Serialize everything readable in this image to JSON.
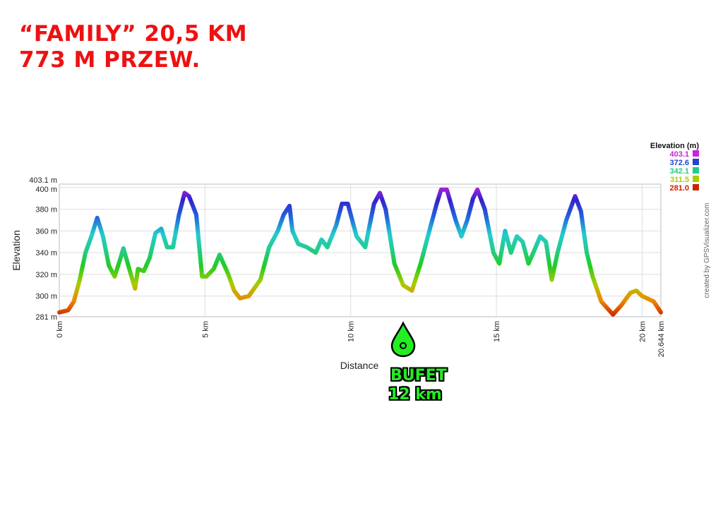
{
  "header": {
    "title_line1": "“FAMILY” 20,5 KM",
    "title_line2": "773 M PRZEW."
  },
  "annotation": {
    "label_line1": "BUFET",
    "label_line2": "12 km",
    "position_km": 12,
    "icon": "water-drop-icon",
    "color": "#22ee22"
  },
  "credit": "created by GPSVisualizer.com",
  "chart_data": {
    "type": "area",
    "title": "",
    "xlabel": "Distance",
    "ylabel": "Elevation",
    "xlim": [
      0,
      20.644
    ],
    "ylim": [
      281,
      403.1
    ],
    "x_ticks": [
      {
        "value": 0,
        "label": "0 km"
      },
      {
        "value": 5,
        "label": "5 km"
      },
      {
        "value": 10,
        "label": "10 km"
      },
      {
        "value": 15,
        "label": "15 km"
      },
      {
        "value": 20,
        "label": "20 km"
      },
      {
        "value": 20.644,
        "label": "20.644 km"
      }
    ],
    "y_ticks": [
      {
        "value": 281,
        "label": "281 m"
      },
      {
        "value": 300,
        "label": "300 m"
      },
      {
        "value": 320,
        "label": "320 m"
      },
      {
        "value": 340,
        "label": "340 m"
      },
      {
        "value": 360,
        "label": "360 m"
      },
      {
        "value": 380,
        "label": "380 m"
      },
      {
        "value": 400,
        "label": "400 m"
      },
      {
        "value": 403.1,
        "label": "403.1 m"
      }
    ],
    "legend": {
      "title": "Elevation (m)",
      "placement": "top-right",
      "entries": [
        {
          "label": "403.1",
          "color": "#cc22dd"
        },
        {
          "label": "372.6",
          "color": "#2244cc"
        },
        {
          "label": "342.1",
          "color": "#22cc88"
        },
        {
          "label": "311.5",
          "color": "#aacc00"
        },
        {
          "label": "281.0",
          "color": "#cc2200"
        }
      ]
    },
    "grid": true,
    "series": [
      {
        "x": [
          0,
          0.3,
          0.5,
          0.7,
          0.9,
          1.1,
          1.3,
          1.5,
          1.7,
          1.9,
          2.1,
          2.2,
          2.4,
          2.6,
          2.7,
          2.9,
          3.1,
          3.3,
          3.5,
          3.7,
          3.9,
          4.1,
          4.3,
          4.45,
          4.7,
          4.9,
          5.05,
          5.3,
          5.5,
          5.8,
          6.0,
          6.2,
          6.5,
          6.9,
          7.2,
          7.5,
          7.7,
          7.9,
          8.0,
          8.2,
          8.5,
          8.8,
          9.0,
          9.2,
          9.5,
          9.7,
          9.9,
          10.2,
          10.5,
          10.8,
          11.0,
          11.2,
          11.5,
          11.8,
          12.1,
          12.4,
          12.7,
          12.95,
          13.1,
          13.3,
          13.6,
          13.8,
          14.0,
          14.2,
          14.35,
          14.6,
          14.9,
          15.1,
          15.3,
          15.5,
          15.7,
          15.9,
          16.1,
          16.3,
          16.5,
          16.7,
          16.9,
          17.1,
          17.4,
          17.7,
          17.9,
          18.1,
          18.3,
          18.6,
          19.0,
          19.3,
          19.6,
          19.8,
          20.0,
          20.4,
          20.644
        ],
        "y": [
          285,
          287,
          295,
          315,
          340,
          355,
          372,
          355,
          328,
          318,
          335,
          344,
          325,
          307,
          325,
          323,
          335,
          358,
          362,
          345,
          345,
          374,
          395,
          392,
          375,
          318,
          318,
          325,
          338,
          320,
          305,
          298,
          300,
          315,
          345,
          360,
          375,
          383,
          360,
          348,
          345,
          340,
          352,
          345,
          365,
          385,
          385,
          355,
          345,
          385,
          395,
          380,
          330,
          310,
          305,
          330,
          360,
          385,
          398,
          398,
          370,
          355,
          370,
          390,
          398,
          380,
          340,
          330,
          360,
          340,
          355,
          350,
          330,
          342,
          355,
          350,
          315,
          340,
          370,
          392,
          378,
          340,
          318,
          295,
          283,
          292,
          303,
          305,
          300,
          295,
          285
        ]
      }
    ]
  }
}
